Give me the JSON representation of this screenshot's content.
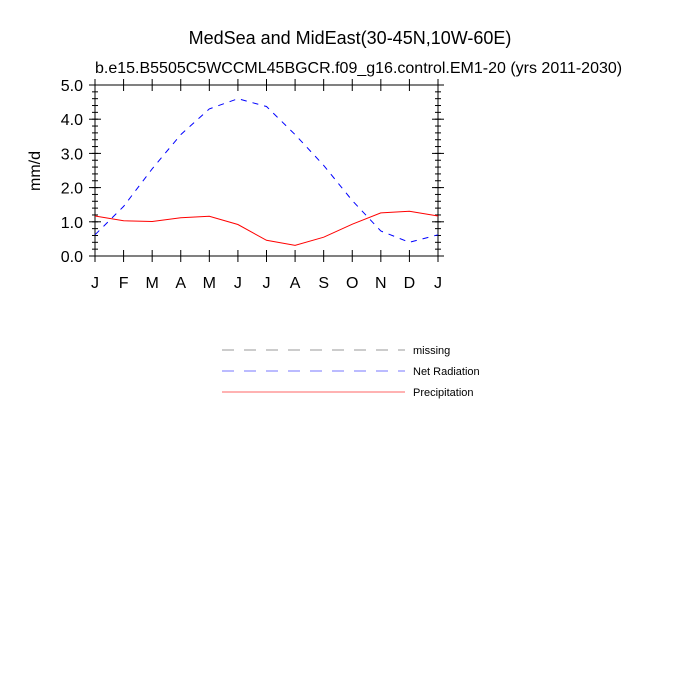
{
  "chart_data": {
    "type": "line",
    "title": "MedSea and MidEast(30-45N,10W-60E)",
    "subtitle": "b.e15.B5505C5WCCML45BGCR.f09_g16.control.EM1-20 (yrs 2011-2030)",
    "xlabel": "",
    "ylabel": "mm/d",
    "categories": [
      "J",
      "F",
      "M",
      "A",
      "M",
      "J",
      "J",
      "A",
      "S",
      "O",
      "N",
      "D",
      "J"
    ],
    "ylim": [
      0,
      5
    ],
    "yticks": [
      "0.0",
      "1.0",
      "2.0",
      "3.0",
      "4.0",
      "5.0"
    ],
    "series": [
      {
        "name": "Net Radiation",
        "color": "#0000ff",
        "dash": "dashed",
        "values": [
          0.62,
          1.45,
          2.55,
          3.55,
          4.3,
          4.6,
          4.37,
          3.55,
          2.65,
          1.62,
          0.73,
          0.4,
          0.62
        ]
      },
      {
        "name": "Precipitation",
        "color": "#ff0000",
        "dash": "solid",
        "values": [
          1.17,
          1.03,
          1.01,
          1.12,
          1.16,
          0.92,
          0.46,
          0.31,
          0.55,
          0.93,
          1.26,
          1.31,
          1.17
        ]
      }
    ],
    "legend": [
      {
        "name": "missing",
        "color": "#999999",
        "dash": "dashed"
      },
      {
        "name": "Net Radiation",
        "color": "#7777ff",
        "dash": "dashed"
      },
      {
        "name": "Precipitation",
        "color": "#ff6666",
        "dash": "solid"
      }
    ],
    "legend_position": "bottom-center",
    "grid": false
  }
}
